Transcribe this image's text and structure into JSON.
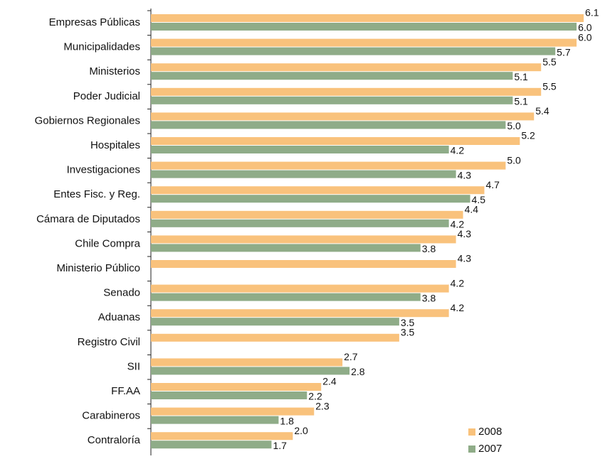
{
  "chart_data": {
    "type": "hbar",
    "categories": [
      "Empresas Públicas",
      "Municipalidades",
      "Ministerios",
      "Poder Judicial",
      "Gobiernos Regionales",
      "Hospitales",
      "Investigaciones",
      "Entes Fisc. y Reg.",
      "Cámara de Diputados",
      "Chile Compra",
      "Ministerio Público",
      "Senado",
      "Aduanas",
      "Registro Civil",
      "SII",
      "FF.AA",
      "Carabineros",
      "Contraloría"
    ],
    "series": [
      {
        "name": "2008",
        "color": "#f9c27c",
        "values": [
          6.1,
          6.0,
          5.5,
          5.5,
          5.4,
          5.2,
          5.0,
          4.7,
          4.4,
          4.3,
          4.3,
          4.2,
          4.2,
          3.5,
          2.7,
          2.4,
          2.3,
          2.0
        ],
        "value_labels": [
          "6.1",
          "6.0",
          "5.5",
          "5.5",
          "5.4",
          "5.2",
          "5.0",
          "4.7",
          "4.4",
          "4.3",
          "4.3",
          "4.2",
          "4.2",
          "3.5",
          "2.7",
          "2.4",
          "2.3",
          "2.0"
        ]
      },
      {
        "name": "2007",
        "color": "#8fac88",
        "values": [
          6.0,
          5.7,
          5.1,
          5.1,
          5.0,
          4.2,
          4.3,
          4.5,
          4.2,
          3.8,
          null,
          3.8,
          3.5,
          null,
          2.8,
          2.2,
          1.8,
          1.7
        ],
        "value_labels": [
          "6.0",
          "5.7",
          "5.1",
          "5.1",
          "5.0",
          "4.2",
          "4.3",
          "4.5",
          "4.2",
          "3.8",
          null,
          "3.8",
          "3.5",
          null,
          "2.8",
          "2.2",
          "1.8",
          "1.7"
        ]
      }
    ],
    "xlim": [
      0,
      6.2
    ],
    "legend": "lower right"
  }
}
